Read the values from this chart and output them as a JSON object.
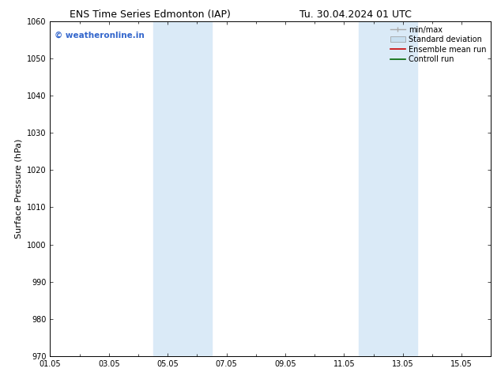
{
  "title_left": "ENS Time Series Edmonton (IAP)",
  "title_right": "Tu. 30.04.2024 01 UTC",
  "ylabel": "Surface Pressure (hPa)",
  "ylim": [
    970,
    1060
  ],
  "yticks": [
    970,
    980,
    990,
    1000,
    1010,
    1020,
    1030,
    1040,
    1050,
    1060
  ],
  "xtick_labels": [
    "01.05",
    "03.05",
    "05.05",
    "07.05",
    "09.05",
    "11.05",
    "13.05",
    "15.05"
  ],
  "xtick_positions": [
    0,
    2,
    4,
    6,
    8,
    10,
    12,
    14
  ],
  "xlim": [
    0,
    15
  ],
  "shaded_bands": [
    {
      "xstart": 3.5,
      "xend": 4.5
    },
    {
      "xstart": 4.5,
      "xend": 5.5
    },
    {
      "xstart": 10.5,
      "xend": 11.5
    },
    {
      "xstart": 11.5,
      "xend": 12.5
    }
  ],
  "shaded_color": "#daeaf7",
  "watermark_text": "© weatheronline.in",
  "watermark_color": "#3366cc",
  "legend_entries": [
    {
      "label": "min/max",
      "color": "#aaaaaa",
      "lw": 1.0,
      "type": "line_marker"
    },
    {
      "label": "Standard deviation",
      "color": "#c8dff0",
      "lw": 4,
      "type": "patch"
    },
    {
      "label": "Ensemble mean run",
      "color": "#cc0000",
      "lw": 1.2,
      "type": "line"
    },
    {
      "label": "Controll run",
      "color": "#006600",
      "lw": 1.2,
      "type": "line"
    }
  ],
  "bg_color": "#ffffff",
  "spine_color": "#000000",
  "grid_color": "#cccccc",
  "title_fontsize": 9,
  "tick_fontsize": 7,
  "ylabel_fontsize": 8,
  "watermark_fontsize": 7.5,
  "legend_fontsize": 7
}
